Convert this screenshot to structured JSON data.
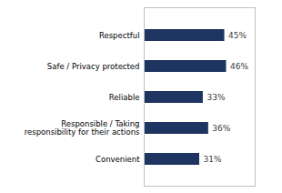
{
  "chart_data": {
    "type": "bar",
    "orientation": "horizontal",
    "categories": [
      "Respectful",
      "Safe / Privacy protected",
      "Reliable",
      "Responsible / Taking\nresponsibility for their actions",
      "Convenient"
    ],
    "values": [
      45,
      46,
      33,
      36,
      31
    ],
    "value_labels": [
      "45%",
      "46%",
      "33%",
      "36%",
      "31%"
    ],
    "data_labels": true,
    "color": "#1e3461",
    "xlim": [
      0,
      62
    ],
    "tick_labels": "y",
    "grid": false
  }
}
